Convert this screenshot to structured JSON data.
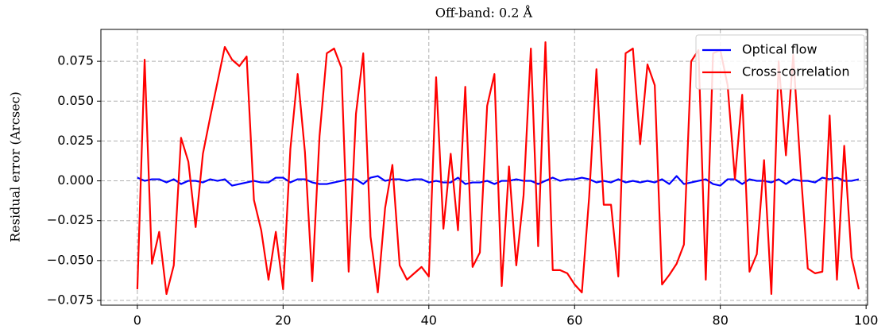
{
  "chart_data": {
    "type": "line",
    "title": "Off-band: 0.2 Å",
    "y_label": "Residual error (Arcsec)",
    "x": [
      0,
      1,
      2,
      3,
      4,
      5,
      6,
      7,
      8,
      9,
      10,
      11,
      12,
      13,
      14,
      15,
      16,
      17,
      18,
      19,
      20,
      21,
      22,
      23,
      24,
      25,
      26,
      27,
      28,
      29,
      30,
      31,
      32,
      33,
      34,
      35,
      36,
      37,
      38,
      39,
      40,
      41,
      42,
      43,
      44,
      45,
      46,
      47,
      48,
      49,
      50,
      51,
      52,
      53,
      54,
      55,
      56,
      57,
      58,
      59,
      60,
      61,
      62,
      63,
      64,
      65,
      66,
      67,
      68,
      69,
      70,
      71,
      72,
      73,
      74,
      75,
      76,
      77,
      78,
      79,
      80,
      81,
      82,
      83,
      84,
      85,
      86,
      87,
      88,
      89,
      90,
      91,
      92,
      93,
      94,
      95,
      96,
      97,
      98,
      99
    ],
    "series": [
      {
        "name": "Optical flow",
        "color": "#0000ff",
        "values": [
          0.002,
          0.0,
          0.001,
          0.001,
          -0.001,
          0.001,
          -0.002,
          0.0,
          0.0,
          -0.001,
          0.001,
          0.0,
          0.001,
          -0.003,
          -0.002,
          -0.001,
          0.0,
          -0.001,
          -0.001,
          0.002,
          0.002,
          -0.001,
          0.001,
          0.001,
          -0.001,
          -0.002,
          -0.002,
          -0.001,
          0.0,
          0.001,
          0.001,
          -0.002,
          0.002,
          0.003,
          0.0,
          0.001,
          0.001,
          0.0,
          0.001,
          0.001,
          -0.001,
          0.0,
          -0.001,
          -0.001,
          0.002,
          -0.002,
          -0.001,
          -0.001,
          0.0,
          -0.002,
          0.0,
          0.0,
          0.001,
          0.0,
          0.0,
          -0.002,
          0.0,
          0.002,
          0.0,
          0.001,
          0.001,
          0.002,
          0.001,
          -0.001,
          0.0,
          -0.001,
          0.001,
          -0.001,
          0.0,
          -0.001,
          0.0,
          -0.001,
          0.001,
          -0.002,
          0.003,
          -0.002,
          -0.001,
          0.0,
          0.001,
          -0.002,
          -0.003,
          0.001,
          0.001,
          -0.002,
          0.001,
          0.0,
          0.0,
          -0.001,
          0.001,
          -0.002,
          0.001,
          0.0,
          0.0,
          -0.001,
          0.002,
          0.001,
          0.002,
          0.0,
          0.0,
          0.001
        ]
      },
      {
        "name": "Cross-correlation",
        "color": "#ff0000",
        "values": [
          -0.068,
          0.076,
          -0.052,
          -0.032,
          -0.071,
          -0.053,
          0.027,
          0.012,
          -0.029,
          0.017,
          0.04,
          0.062,
          0.084,
          0.076,
          0.072,
          0.078,
          -0.012,
          -0.031,
          -0.062,
          -0.032,
          -0.068,
          0.02,
          0.067,
          0.018,
          -0.063,
          0.028,
          0.08,
          0.083,
          0.071,
          -0.057,
          0.042,
          0.08,
          -0.035,
          -0.07,
          -0.017,
          0.01,
          -0.053,
          -0.062,
          -0.058,
          -0.054,
          -0.06,
          0.065,
          -0.03,
          0.017,
          -0.031,
          0.059,
          -0.054,
          -0.045,
          0.047,
          0.067,
          -0.066,
          0.009,
          -0.053,
          -0.009,
          0.083,
          -0.041,
          0.087,
          -0.056,
          -0.056,
          -0.058,
          -0.065,
          -0.07,
          -0.01,
          0.07,
          -0.015,
          -0.015,
          -0.06,
          0.08,
          0.083,
          0.023,
          0.073,
          0.06,
          -0.065,
          -0.059,
          -0.052,
          -0.04,
          0.075,
          0.082,
          -0.062,
          0.08,
          0.082,
          0.06,
          0.001,
          0.054,
          -0.057,
          -0.046,
          0.013,
          -0.071,
          0.075,
          0.016,
          0.079,
          0.008,
          -0.055,
          -0.058,
          -0.057,
          0.041,
          -0.062,
          0.022,
          -0.048,
          -0.068
        ]
      }
    ],
    "xlim": [
      -5,
      100.2
    ],
    "ylim": [
      -0.078,
      0.095
    ],
    "xticks": [
      0,
      20,
      40,
      60,
      80,
      100
    ],
    "yticks": [
      {
        "value": -0.075,
        "label": "−0.075"
      },
      {
        "value": -0.05,
        "label": "−0.050"
      },
      {
        "value": -0.025,
        "label": "−0.025"
      },
      {
        "value": 0,
        "label": "0.000"
      },
      {
        "value": 0.025,
        "label": "0.025"
      },
      {
        "value": 0.05,
        "label": "0.050"
      },
      {
        "value": 0.075,
        "label": "0.075"
      }
    ],
    "grid": true,
    "legend": "upper right"
  }
}
